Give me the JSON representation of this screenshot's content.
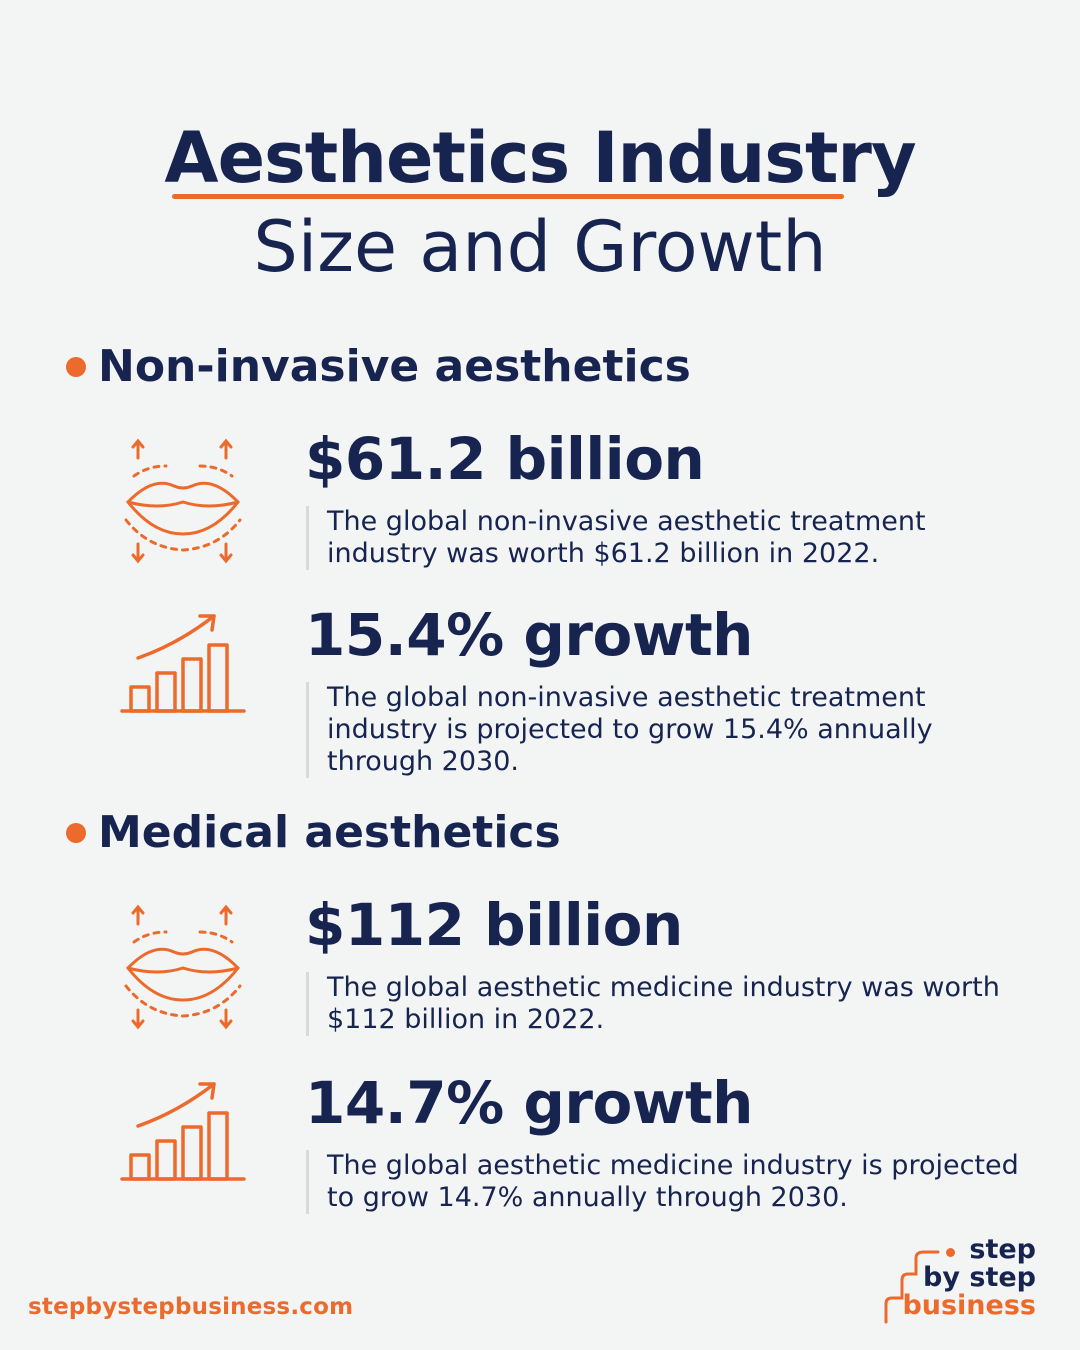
{
  "header": {
    "title": "Aesthetics Industry",
    "subtitle": "Size and Growth"
  },
  "sections": [
    {
      "label": "Non-invasive aesthetics",
      "stats": [
        {
          "icon": "lips-icon",
          "value": "$61.2 billion",
          "description": "The global non-invasive aesthetic treatment industry was worth $61.2 billion in 2022."
        },
        {
          "icon": "growth-chart-icon",
          "value": "15.4% growth",
          "description": "The global non-invasive aesthetic treatment industry is projected to grow 15.4% annually through 2030."
        }
      ]
    },
    {
      "label": "Medical aesthetics",
      "stats": [
        {
          "icon": "lips-icon",
          "value": "$112 billion",
          "description": "The global aesthetic medicine industry was worth $112 billion in 2022."
        },
        {
          "icon": "growth-chart-icon",
          "value": "14.7% growth",
          "description": "The global aesthetic medicine industry is projected to grow 14.7% annually through 2030."
        }
      ]
    }
  ],
  "footer": {
    "url": "stepbystepbusiness.com",
    "logo_line1": "step",
    "logo_line2": "by step",
    "logo_line3": "business"
  },
  "colors": {
    "accent": "#ec6a2c",
    "navy": "#17244f",
    "background": "#f3f5f5"
  }
}
